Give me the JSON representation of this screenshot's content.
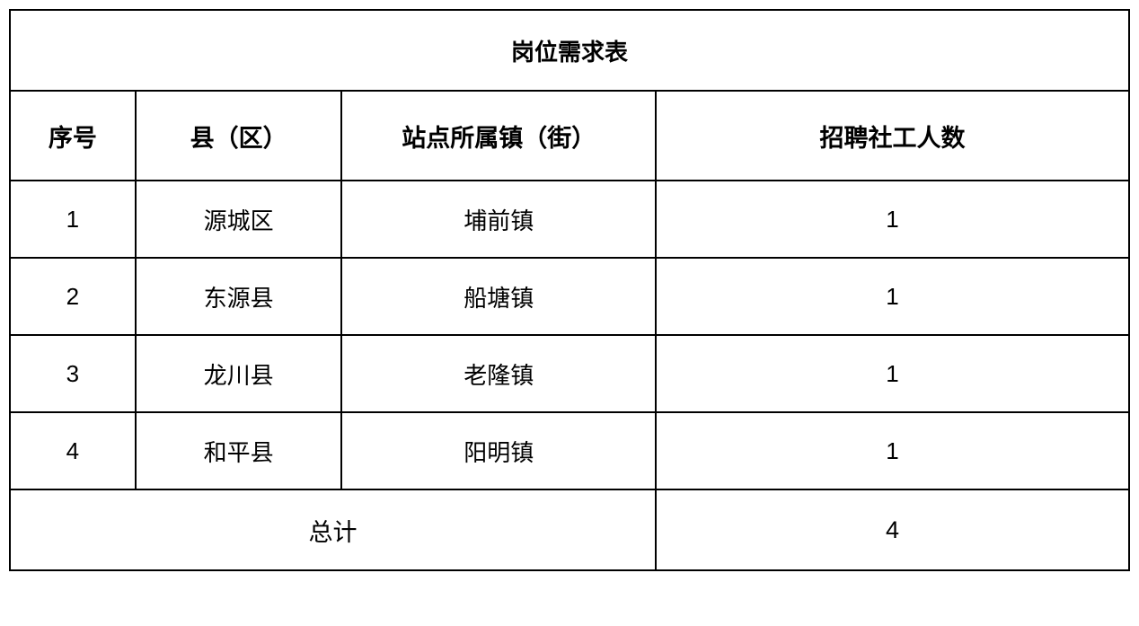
{
  "table": {
    "title": "岗位需求表",
    "headers": {
      "seq": "序号",
      "county": "县（区）",
      "town": "站点所属镇（街）",
      "count": "招聘社工人数"
    },
    "rows": [
      {
        "seq": "1",
        "county": "源城区",
        "town": "埔前镇",
        "count": "1"
      },
      {
        "seq": "2",
        "county": "东源县",
        "town": "船塘镇",
        "count": "1"
      },
      {
        "seq": "3",
        "county": "龙川县",
        "town": "老隆镇",
        "count": "1"
      },
      {
        "seq": "4",
        "county": "和平县",
        "town": "阳明镇",
        "count": "1"
      }
    ],
    "total": {
      "label": "总计",
      "value": "4"
    },
    "styling": {
      "border_color": "#000000",
      "border_width": 2,
      "background_color": "#ffffff",
      "text_color": "#000000",
      "title_fontsize": 28,
      "header_fontsize": 27,
      "cell_fontsize": 26,
      "total_fontsize": 27,
      "col_widths": {
        "seq": 140,
        "county": 230,
        "town": 350,
        "count": 528
      }
    }
  }
}
